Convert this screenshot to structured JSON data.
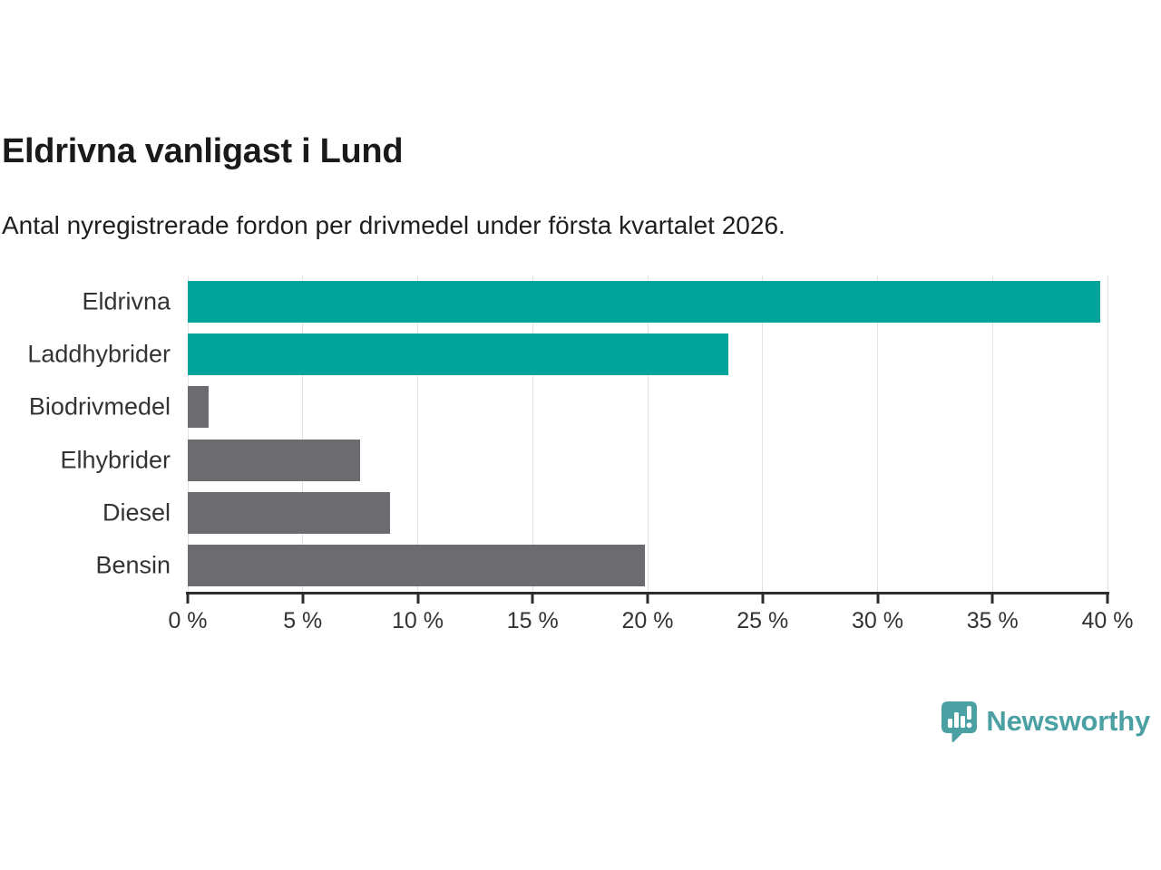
{
  "header": {
    "title": "Eldrivna vanligast i Lund",
    "subtitle": "Antal nyregistrerade fordon per drivmedel under första kvartalet 2026."
  },
  "chart_data": {
    "type": "bar",
    "orientation": "horizontal",
    "title": "Eldrivna vanligast i Lund",
    "subtitle": "Antal nyregistrerade fordon per drivmedel under första kvartalet 2026.",
    "categories": [
      "Eldrivna",
      "Laddhybrider",
      "Biodrivmedel",
      "Elhybrider",
      "Diesel",
      "Bensin"
    ],
    "values": [
      39.7,
      23.5,
      0.9,
      7.5,
      8.8,
      19.9
    ],
    "unit": "%",
    "xlim": [
      0,
      40
    ],
    "x_tick_values": [
      0,
      5,
      10,
      15,
      20,
      25,
      30,
      35,
      40
    ],
    "x_tick_labels": [
      "0 %",
      "5 %",
      "10 %",
      "15 %",
      "20 %",
      "25 %",
      "30 %",
      "35 %",
      "40 %"
    ],
    "bar_colors": [
      "#00A49B",
      "#00A49B",
      "#6B6B70",
      "#6B6B70",
      "#6B6B70",
      "#6B6B70"
    ],
    "grid": true,
    "legend": false
  },
  "branding": {
    "name": "Newsworthy",
    "text_color": "#4BA0A4",
    "icon_color": "#4BA0A4",
    "icon": "newsworthy-speech-bubble-chart-icon"
  },
  "colors": {
    "background": "#FFFFFF",
    "accent": "#00A49B",
    "muted_bar": "#6B6B70",
    "title_text": "#1A1A1A",
    "axis": "#2D2D2D",
    "gridline": "#E2E2E2",
    "tick_text": "#333333"
  }
}
